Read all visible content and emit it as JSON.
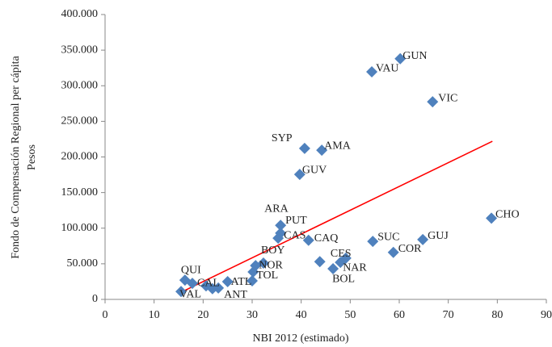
{
  "chart_data": {
    "type": "scatter",
    "xlabel": "NBI 2012 (estimado)",
    "ylabel": [
      "Fondo de Compensación Regional per cápita",
      "Pesos"
    ],
    "color": "#4f81bd",
    "x": [
      60.2,
      54.4,
      66.8,
      40.7,
      44.2,
      39.7,
      78.8,
      35.8,
      35.8,
      35.3,
      41.5,
      54.6,
      64.8,
      58.8,
      32.3,
      30.7,
      30.2,
      30.0,
      49.1,
      48.0,
      46.5,
      43.8,
      16.3,
      17.8,
      25.0,
      23.1,
      15.5,
      20.6,
      21.9
    ],
    "values": [
      338000,
      319500,
      277500,
      212000,
      209500,
      175500,
      114000,
      104000,
      93000,
      86000,
      83000,
      81500,
      84000,
      66000,
      51000,
      47500,
      38500,
      26000,
      58000,
      52000,
      43000,
      53000,
      27000,
      22500,
      25000,
      16000,
      11000,
      19000,
      15000
    ],
    "labels": [
      "GUN",
      "VAU",
      "VIC",
      "SYP",
      "AMA",
      "GUV",
      "CHO",
      "ARA",
      "PUT",
      "CAS",
      "CAQ",
      "SUC",
      "GUJ",
      "COR",
      "BOY",
      "NOR",
      "TOL",
      null,
      "CES",
      "NAR",
      "BOL",
      null,
      "QUI",
      "CAL",
      "ATL",
      "ANT",
      "VAL",
      null,
      null
    ],
    "trendline": {
      "color": "#ff0000",
      "x": [
        15.5,
        79
      ],
      "y": [
        10000,
        222000
      ]
    },
    "xlim": [
      0,
      90
    ],
    "xticks": [
      0,
      10,
      20,
      30,
      40,
      50,
      60,
      70,
      80,
      90
    ],
    "ylim": [
      0,
      400000
    ],
    "yticks": [
      0,
      {
        "value": 50000,
        "label": "50.000"
      },
      {
        "value": 100000,
        "label": "100.000"
      },
      {
        "value": 150000,
        "label": "150.000"
      },
      {
        "value": 200000,
        "label": "200.000"
      },
      {
        "value": 250000,
        "label": "250.000"
      },
      {
        "value": 300000,
        "label": "300.000"
      },
      {
        "value": 350000,
        "label": "350.000"
      },
      {
        "value": 400000,
        "label": "400.000"
      }
    ],
    "grid": false
  }
}
